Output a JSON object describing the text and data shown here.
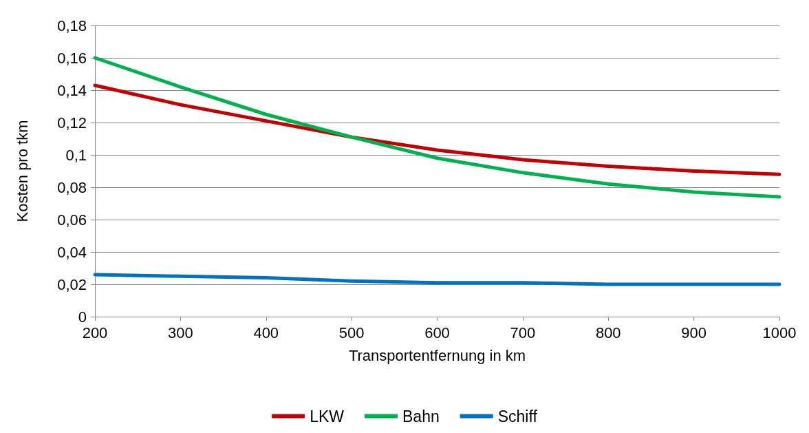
{
  "chart_data": {
    "type": "line",
    "xlabel": "Transportentfernung in km",
    "ylabel": "Kosten pro tkm",
    "x": [
      200,
      300,
      400,
      500,
      600,
      700,
      800,
      900,
      1000
    ],
    "series": [
      {
        "name": "LKW",
        "color": "#c00000",
        "values": [
          0.143,
          0.131,
          0.121,
          0.111,
          0.103,
          0.097,
          0.093,
          0.09,
          0.088
        ]
      },
      {
        "name": "Bahn",
        "color": "#00b050",
        "values": [
          0.16,
          0.142,
          0.125,
          0.111,
          0.098,
          0.089,
          0.082,
          0.077,
          0.074
        ]
      },
      {
        "name": "Schiff",
        "color": "#0070c0",
        "values": [
          0.026,
          0.025,
          0.024,
          0.022,
          0.021,
          0.021,
          0.02,
          0.02,
          0.02
        ]
      }
    ],
    "xlim": [
      200,
      1000
    ],
    "xticks": [
      200,
      300,
      400,
      500,
      600,
      700,
      800,
      900,
      1000
    ],
    "ylim": [
      0,
      0.18
    ],
    "yticks": [
      0,
      {
        "value": 0.02,
        "label": "0,02"
      },
      {
        "value": 0.04,
        "label": "0,04"
      },
      {
        "value": 0.06,
        "label": "0,06"
      },
      {
        "value": 0.08,
        "label": "0,08"
      },
      {
        "value": 0.1,
        "label": "0,1"
      },
      {
        "value": 0.12,
        "label": "0,12"
      },
      {
        "value": 0.14,
        "label": "0,14"
      },
      {
        "value": 0.16,
        "label": "0,16"
      },
      {
        "value": 0.18,
        "label": "0,18"
      }
    ],
    "grid": "y",
    "legend": "bottom",
    "marker": "none",
    "line_style": "solid"
  }
}
